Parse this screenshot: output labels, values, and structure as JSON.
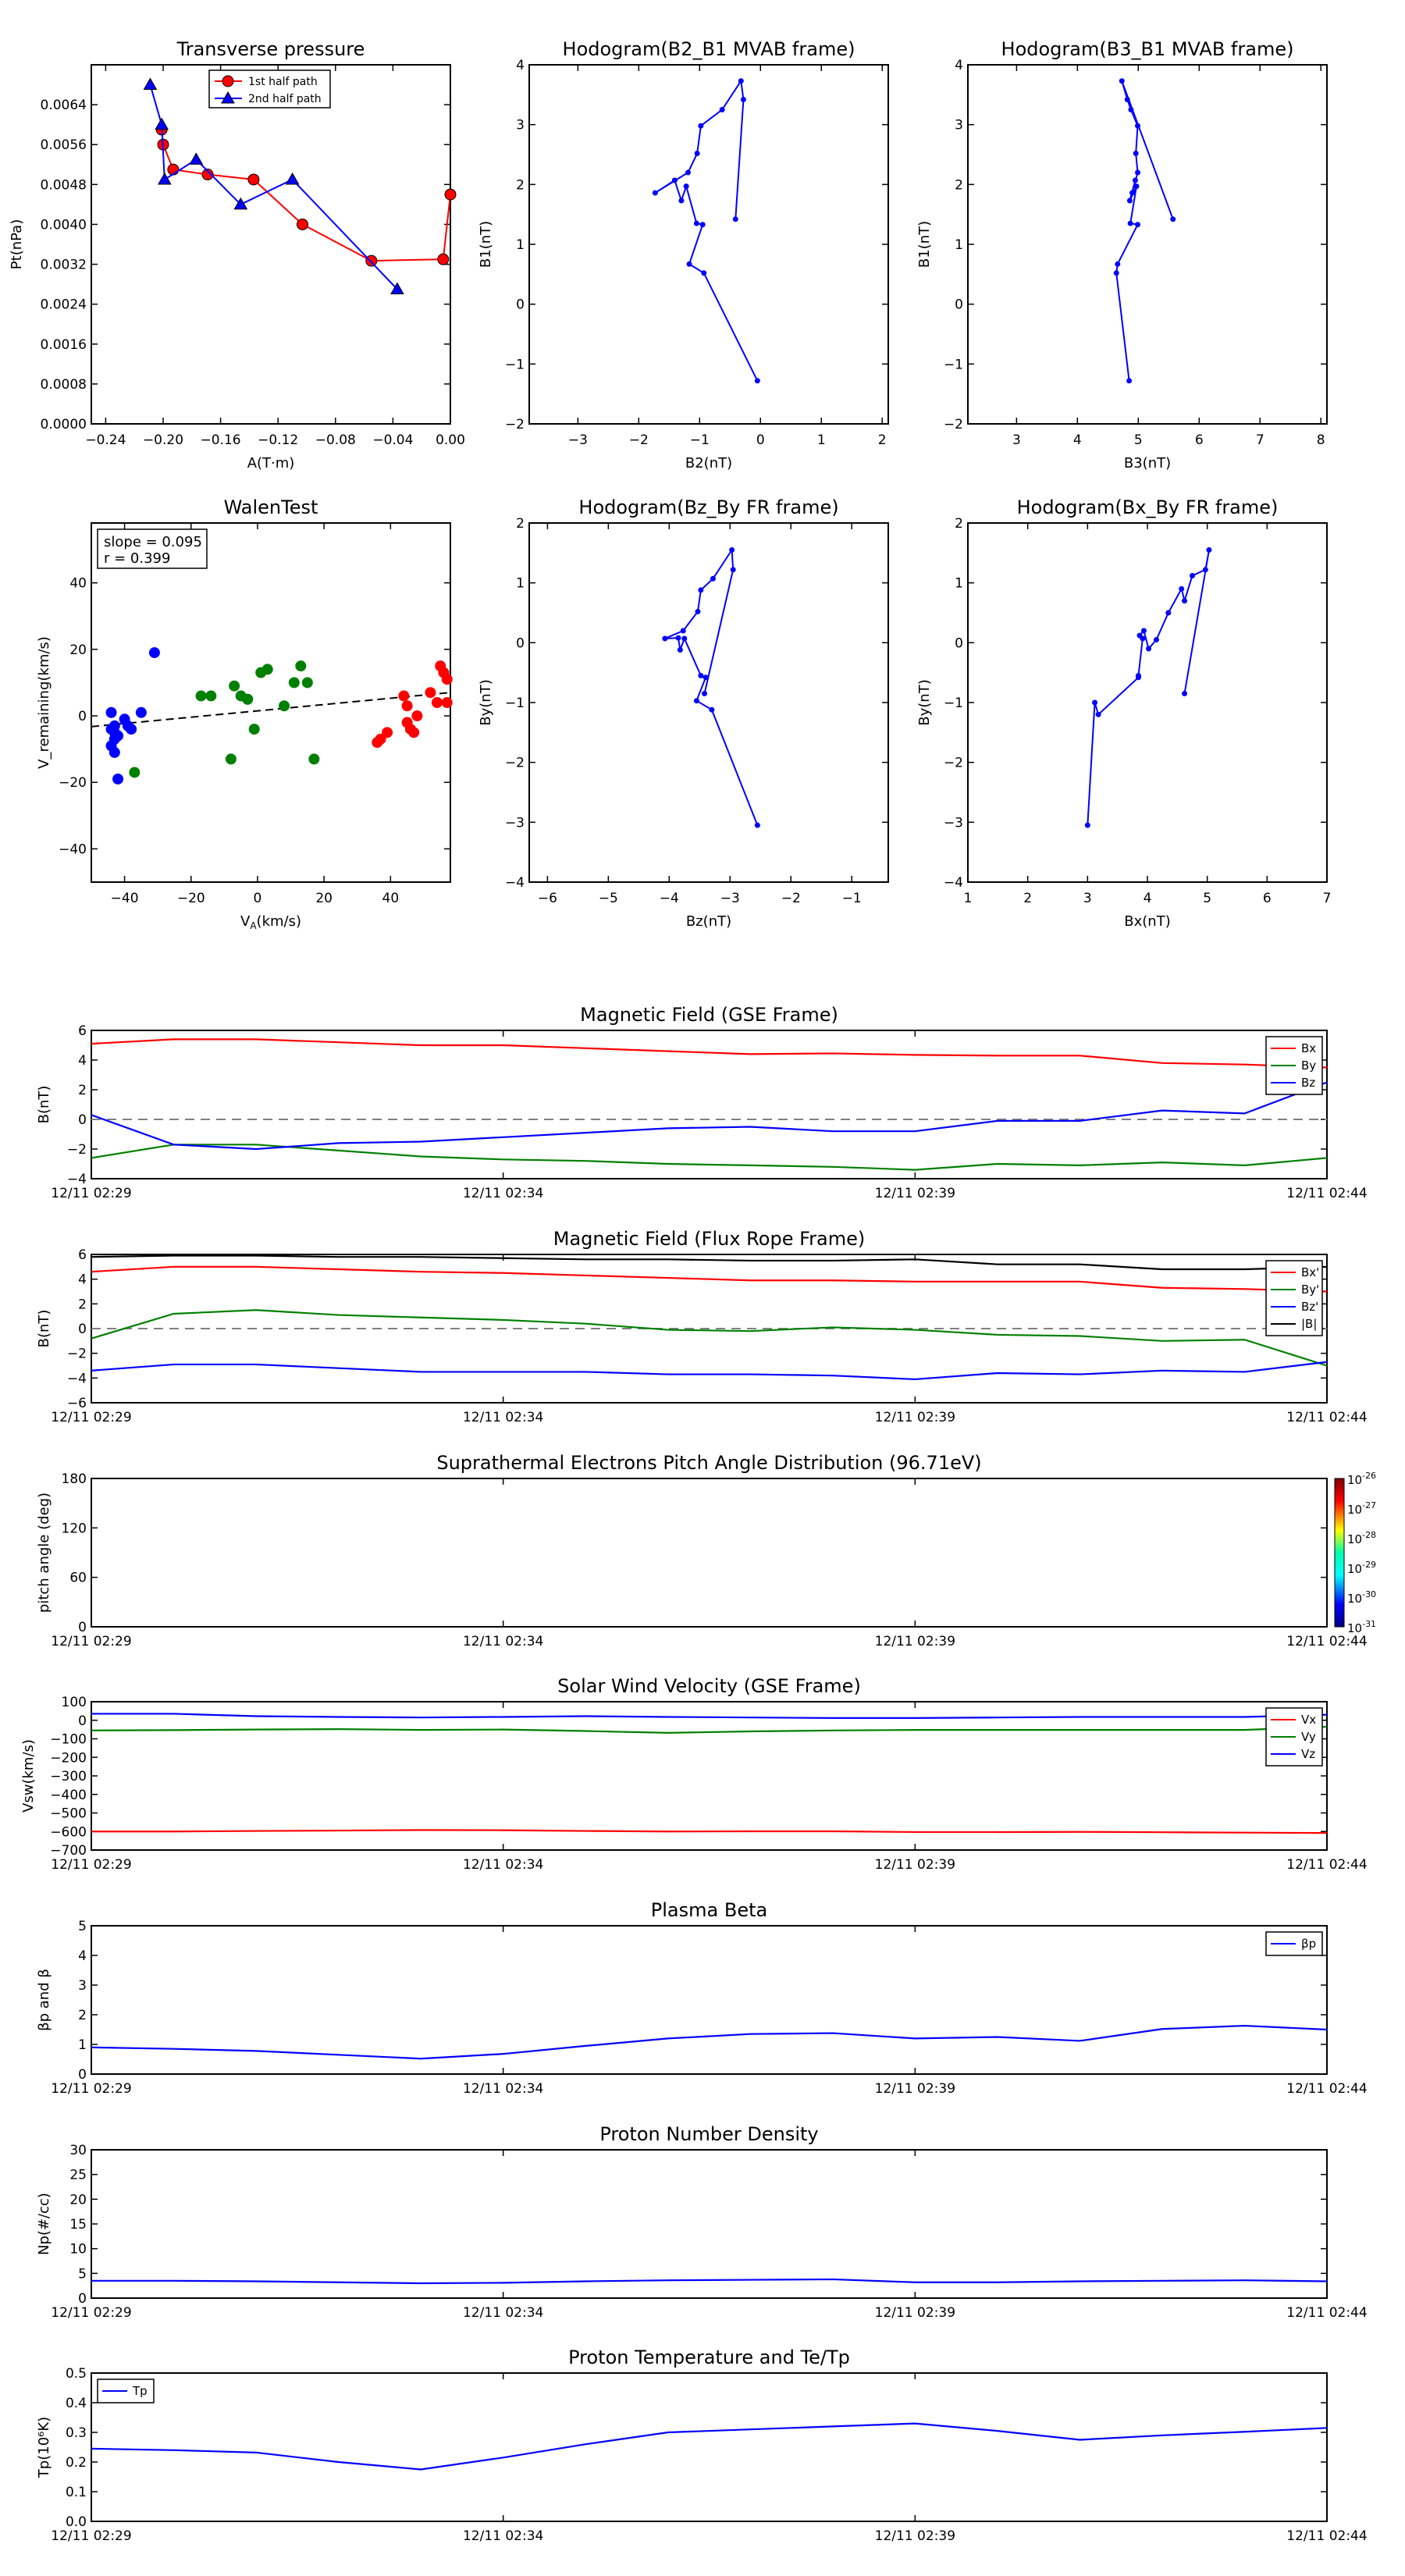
{
  "colors": {
    "red": "#ff0000",
    "green": "#008000",
    "blue": "#0000ff",
    "black": "#000000",
    "gray": "#808080"
  },
  "chart_data": [
    {
      "id": "tp",
      "type": "line",
      "title": "Transverse pressure",
      "xlabel": "A(T·m)",
      "ylabel": "Pt(nPa)",
      "xlim": [
        -0.25,
        0.0
      ],
      "ylim": [
        0.0,
        0.0072
      ],
      "xticks": [
        -0.24,
        -0.2,
        -0.16,
        -0.12,
        -0.08,
        -0.04,
        0.0
      ],
      "xtick_labels": [
        "−0.24",
        "−0.20",
        "−0.16",
        "−0.12",
        "−0.08",
        "−0.04",
        "0.00"
      ],
      "yticks": [
        0.0,
        0.0008,
        0.0016,
        0.0024,
        0.0032,
        0.004,
        0.0048,
        0.0056,
        0.0064
      ],
      "ytick_labels": [
        "0.0000",
        "0.0008",
        "0.0016",
        "0.0024",
        "0.0032",
        "0.0040",
        "0.0048",
        "0.0056",
        "0.0064"
      ],
      "legend": "top-center",
      "series": [
        {
          "name": "1st half path",
          "color": "red",
          "marker": "circle",
          "x": [
            0.0,
            -0.005,
            -0.055,
            -0.103,
            -0.137,
            -0.169,
            -0.193,
            -0.2,
            -0.201
          ],
          "y": [
            0.0046,
            0.0033,
            0.00327,
            0.004,
            0.0049,
            0.005,
            0.0051,
            0.0056,
            0.0059
          ]
        },
        {
          "name": "2nd half path",
          "color": "blue",
          "marker": "triangle",
          "x": [
            -0.037,
            -0.11,
            -0.146,
            -0.177,
            -0.199,
            -0.201,
            -0.209
          ],
          "y": [
            0.0027,
            0.0049,
            0.0044,
            0.0053,
            0.0049,
            0.006,
            0.0068
          ]
        }
      ]
    },
    {
      "id": "hodo1",
      "type": "line",
      "title": "Hodogram(B2_B1 MVAB frame)",
      "xlabel": "B2(nT)",
      "ylabel": "B1(nT)",
      "xlim": [
        -3.8,
        2.1
      ],
      "ylim": [
        -2,
        4
      ],
      "xticks": [
        -3,
        -2,
        -1,
        0,
        1,
        2
      ],
      "xtick_labels": [
        "−3",
        "−2",
        "−1",
        "0",
        "1",
        "2"
      ],
      "yticks": [
        -2,
        -1,
        0,
        1,
        2,
        3,
        4
      ],
      "ytick_labels": [
        "−2",
        "−1",
        "0",
        "1",
        "2",
        "3",
        "4"
      ],
      "series": [
        {
          "name": "hodogram",
          "color": "blue",
          "marker": "dot",
          "x": [
            -0.05,
            -0.93,
            -1.17,
            -0.95,
            -1.05,
            -1.22,
            -1.3,
            -1.41,
            -1.73,
            -1.19,
            -1.04,
            -0.98,
            -0.63,
            -0.32,
            -0.28,
            -0.41
          ],
          "y": [
            -1.28,
            0.52,
            0.67,
            1.33,
            1.35,
            1.97,
            1.73,
            2.07,
            1.86,
            2.2,
            2.52,
            2.98,
            3.25,
            3.73,
            3.42,
            1.42
          ]
        }
      ]
    },
    {
      "id": "hodo2",
      "type": "line",
      "title": "Hodogram(B3_B1 MVAB frame)",
      "xlabel": "B3(nT)",
      "ylabel": "B1(nT)",
      "xlim": [
        2.2,
        8.1
      ],
      "ylim": [
        -2,
        4
      ],
      "xticks": [
        3,
        4,
        5,
        6,
        7,
        8
      ],
      "xtick_labels": [
        "3",
        "4",
        "5",
        "6",
        "7",
        "8"
      ],
      "yticks": [
        -2,
        -1,
        0,
        1,
        2,
        3,
        4
      ],
      "ytick_labels": [
        "−2",
        "−1",
        "0",
        "1",
        "2",
        "3",
        "4"
      ],
      "series": [
        {
          "name": "hodogram",
          "color": "blue",
          "marker": "dot",
          "x": [
            4.85,
            4.64,
            4.66,
            4.99,
            4.87,
            4.97,
            4.86,
            4.95,
            4.9,
            4.99,
            4.96,
            4.99,
            4.88,
            4.82,
            4.73,
            5.57
          ],
          "y": [
            -1.28,
            0.52,
            0.67,
            1.33,
            1.35,
            1.97,
            1.73,
            2.07,
            1.86,
            2.2,
            2.52,
            2.98,
            3.25,
            3.42,
            3.73,
            1.42
          ]
        }
      ]
    },
    {
      "id": "walen",
      "type": "scatter",
      "title": "WalenTest",
      "xlabel": "V_A(km/s)",
      "ylabel": "V_remaining(km/s)",
      "xlim": [
        -50,
        58
      ],
      "ylim": [
        -50,
        58
      ],
      "xticks": [
        -40,
        -20,
        0,
        20,
        40
      ],
      "xtick_labels": [
        "−40",
        "−20",
        "0",
        "20",
        "40"
      ],
      "yticks": [
        -40,
        -20,
        0,
        20,
        40
      ],
      "ytick_labels": [
        "−40",
        "−20",
        "0",
        "20",
        "40"
      ],
      "annotation": [
        "slope = 0.095",
        "r = 0.399"
      ],
      "fit": {
        "slope": 0.095,
        "intercept": 1.5
      },
      "series": [
        {
          "name": "blue",
          "color": "blue",
          "x": [
            -43,
            -43,
            -44,
            -44,
            -43,
            -42,
            -40,
            -39,
            -38,
            -35,
            -31,
            -44,
            -42,
            -43
          ],
          "y": [
            -5,
            -7,
            -9,
            -4,
            -11,
            -19,
            -1,
            -3,
            -4,
            1,
            19,
            1,
            -6,
            -3
          ]
        },
        {
          "name": "green",
          "color": "green",
          "x": [
            -37,
            -17,
            -14,
            -8,
            -7,
            -5,
            -3,
            -1,
            1,
            3,
            8,
            11,
            13,
            15,
            17,
            -3
          ],
          "y": [
            -17,
            6,
            6,
            -13,
            9,
            6,
            5,
            -4,
            13,
            14,
            3,
            10,
            15,
            10,
            -13,
            5
          ]
        },
        {
          "name": "red",
          "color": "red",
          "x": [
            36,
            37,
            39,
            44,
            45,
            45,
            46,
            47,
            48,
            52,
            54,
            55,
            56,
            57,
            57
          ],
          "y": [
            -8,
            -7,
            -5,
            6,
            3,
            -2,
            -4,
            -5,
            0,
            7,
            4,
            15,
            13,
            11,
            4
          ]
        }
      ]
    },
    {
      "id": "hodo3",
      "type": "line",
      "title": "Hodogram(Bz_By FR frame)",
      "xlabel": "Bz(nT)",
      "ylabel": "By(nT)",
      "xlim": [
        -6.3,
        -0.4
      ],
      "ylim": [
        -4,
        2
      ],
      "xticks": [
        -6,
        -5,
        -4,
        -3,
        -2,
        -1
      ],
      "xtick_labels": [
        "−6",
        "−5",
        "−4",
        "−3",
        "−2",
        "−1"
      ],
      "yticks": [
        -4,
        -3,
        -2,
        -1,
        0,
        1,
        2
      ],
      "ytick_labels": [
        "−4",
        "−3",
        "−2",
        "−1",
        "0",
        "1",
        "2"
      ],
      "series": [
        {
          "name": "hodogram",
          "color": "blue",
          "marker": "dot",
          "x": [
            -2.55,
            -3.3,
            -3.55,
            -3.4,
            -3.48,
            -3.75,
            -3.82,
            -3.85,
            -4.07,
            -3.77,
            -3.53,
            -3.48,
            -3.28,
            -2.97,
            -2.95,
            -3.42
          ],
          "y": [
            -3.05,
            -1.12,
            -0.97,
            -0.58,
            -0.55,
            0.07,
            -0.12,
            0.08,
            0.07,
            0.2,
            0.52,
            0.88,
            1.07,
            1.55,
            1.22,
            -0.85
          ]
        }
      ]
    },
    {
      "id": "hodo4",
      "type": "line",
      "title": "Hodogram(Bx_By FR frame)",
      "xlabel": "Bx(nT)",
      "ylabel": "By(nT)",
      "xlim": [
        1,
        7
      ],
      "ylim": [
        -4,
        2
      ],
      "xticks": [
        1,
        2,
        3,
        4,
        5,
        6,
        7
      ],
      "xtick_labels": [
        "1",
        "2",
        "3",
        "4",
        "5",
        "6",
        "7"
      ],
      "yticks": [
        -4,
        -3,
        -2,
        -1,
        0,
        1,
        2
      ],
      "ytick_labels": [
        "−4",
        "−3",
        "−2",
        "−1",
        "0",
        "1",
        "2"
      ],
      "series": [
        {
          "name": "hodogram",
          "color": "blue",
          "marker": "dot",
          "x": [
            3.0,
            3.12,
            3.18,
            3.85,
            3.85,
            3.92,
            3.87,
            3.94,
            4.02,
            4.15,
            4.35,
            4.57,
            4.62,
            4.75,
            4.97,
            5.03,
            4.62
          ],
          "y": [
            -3.05,
            -1.0,
            -1.2,
            -0.58,
            -0.55,
            0.07,
            0.12,
            0.2,
            -0.1,
            0.05,
            0.5,
            0.9,
            0.7,
            1.12,
            1.22,
            1.55,
            -0.85
          ]
        }
      ]
    },
    {
      "id": "bgse",
      "type": "line",
      "title": "Magnetic Field (GSE Frame)",
      "ylabel": "B(nT)",
      "ylim": [
        -4,
        6
      ],
      "yticks": [
        -4,
        -2,
        0,
        2,
        4,
        6
      ],
      "ytick_labels": [
        "−4",
        "−2",
        "0",
        "2",
        "4",
        "6"
      ],
      "zero_line": true,
      "legend": "top-right",
      "series": [
        {
          "name": "Bx",
          "color": "red",
          "values": [
            5.1,
            5.4,
            5.4,
            5.2,
            5.0,
            5.0,
            4.8,
            4.6,
            4.4,
            4.45,
            4.35,
            4.3,
            4.3,
            3.8,
            3.7,
            3.5
          ]
        },
        {
          "name": "By",
          "color": "green",
          "values": [
            -2.6,
            -1.7,
            -1.7,
            -2.1,
            -2.5,
            -2.7,
            -2.8,
            -3.0,
            -3.1,
            -3.2,
            -3.4,
            -3.0,
            -3.1,
            -2.9,
            -3.1,
            -2.6
          ]
        },
        {
          "name": "Bz",
          "color": "blue",
          "values": [
            0.3,
            -1.7,
            -2.0,
            -1.6,
            -1.5,
            -1.2,
            -0.9,
            -0.6,
            -0.5,
            -0.8,
            -0.8,
            -0.1,
            -0.1,
            0.6,
            0.4,
            2.5
          ]
        }
      ]
    },
    {
      "id": "bfr",
      "type": "line",
      "title": "Magnetic Field (Flux Rope Frame)",
      "ylabel": "B(nT)",
      "ylim": [
        -6,
        6
      ],
      "yticks": [
        -6,
        -4,
        -2,
        0,
        2,
        4,
        6
      ],
      "ytick_labels": [
        "−6",
        "−4",
        "−2",
        "0",
        "2",
        "4",
        "6"
      ],
      "zero_line": true,
      "legend": "top-right",
      "series": [
        {
          "name": "Bx'",
          "color": "red",
          "values": [
            4.6,
            5.0,
            5.0,
            4.8,
            4.6,
            4.5,
            4.3,
            4.1,
            3.9,
            3.9,
            3.8,
            3.8,
            3.8,
            3.3,
            3.2,
            3.0
          ]
        },
        {
          "name": "By'",
          "color": "green",
          "values": [
            -0.8,
            1.2,
            1.5,
            1.1,
            0.9,
            0.7,
            0.4,
            -0.1,
            -0.2,
            0.1,
            -0.1,
            -0.5,
            -0.6,
            -1.0,
            -0.9,
            -3.0
          ]
        },
        {
          "name": "Bz'",
          "color": "blue",
          "values": [
            -3.4,
            -2.9,
            -2.9,
            -3.2,
            -3.5,
            -3.5,
            -3.5,
            -3.7,
            -3.7,
            -3.8,
            -4.1,
            -3.6,
            -3.7,
            -3.4,
            -3.5,
            -2.7
          ]
        },
        {
          "name": "|B|",
          "color": "black",
          "values": [
            5.8,
            5.9,
            5.9,
            5.8,
            5.8,
            5.7,
            5.6,
            5.6,
            5.5,
            5.5,
            5.6,
            5.2,
            5.2,
            4.8,
            4.8,
            5.0
          ]
        }
      ]
    },
    {
      "id": "pad",
      "type": "heatmap",
      "title": "Suprathermal Electrons Pitch Angle Distribution (96.71eV)",
      "ylabel": "pitch angle (deg)",
      "ylim": [
        0,
        180
      ],
      "yticks": [
        0,
        60,
        120,
        180
      ],
      "ytick_labels": [
        "0",
        "60",
        "120",
        "180"
      ],
      "colorbar": {
        "labels": [
          "10",
          "10",
          "10",
          "10",
          "10",
          "10"
        ],
        "exponents": [
          "-26",
          "-27",
          "-28",
          "-29",
          "-30",
          "-31"
        ]
      },
      "series": []
    },
    {
      "id": "vsw",
      "type": "line",
      "title": "Solar Wind Velocity (GSE Frame)",
      "ylabel": "Vsw(km/s)",
      "ylim": [
        -700,
        100
      ],
      "yticks": [
        -700,
        -600,
        -500,
        -400,
        -300,
        -200,
        -100,
        0,
        100
      ],
      "ytick_labels": [
        "−700",
        "−600",
        "−500",
        "−400",
        "−300",
        "−200",
        "−100",
        "0",
        "100"
      ],
      "legend": "top-right",
      "series": [
        {
          "name": "Vx",
          "color": "red",
          "values": [
            -600,
            -600,
            -597,
            -595,
            -592,
            -593,
            -597,
            -600,
            -599,
            -599,
            -603,
            -603,
            -602,
            -604,
            -606,
            -608
          ]
        },
        {
          "name": "Vy",
          "color": "green",
          "values": [
            -55,
            -53,
            -50,
            -48,
            -52,
            -50,
            -58,
            -68,
            -60,
            -55,
            -52,
            -52,
            -52,
            -52,
            -52,
            -35
          ]
        },
        {
          "name": "Vz",
          "color": "blue",
          "values": [
            35,
            35,
            22,
            18,
            15,
            18,
            22,
            18,
            15,
            12,
            12,
            15,
            18,
            18,
            18,
            30
          ]
        }
      ]
    },
    {
      "id": "beta",
      "type": "line",
      "title": "Plasma Beta",
      "ylabel": "βp and β",
      "ylim": [
        0,
        5
      ],
      "yticks": [
        0,
        1,
        2,
        3,
        4,
        5
      ],
      "ytick_labels": [
        "0",
        "1",
        "2",
        "3",
        "4",
        "5"
      ],
      "legend": "top-right",
      "series": [
        {
          "name": "βp",
          "color": "blue",
          "values": [
            0.9,
            0.85,
            0.78,
            0.65,
            0.52,
            0.68,
            0.95,
            1.2,
            1.35,
            1.38,
            1.2,
            1.25,
            1.12,
            1.52,
            1.63,
            1.5
          ]
        }
      ]
    },
    {
      "id": "np",
      "type": "line",
      "title": "Proton Number Density",
      "ylabel": "Np(#/cc)",
      "ylim": [
        0,
        30
      ],
      "yticks": [
        0,
        5,
        10,
        15,
        20,
        25,
        30
      ],
      "ytick_labels": [
        "0",
        "5",
        "10",
        "15",
        "20",
        "25",
        "30"
      ],
      "series": [
        {
          "name": "Np",
          "color": "blue",
          "values": [
            3.5,
            3.5,
            3.4,
            3.2,
            3.0,
            3.1,
            3.4,
            3.6,
            3.7,
            3.8,
            3.2,
            3.2,
            3.4,
            3.5,
            3.6,
            3.4
          ]
        }
      ]
    },
    {
      "id": "temp",
      "type": "line",
      "title": "Proton Temperature and Te/Tp",
      "ylabel": "Tp(10⁶K)",
      "ylim": [
        0,
        0.5
      ],
      "yticks": [
        0,
        0.1,
        0.2,
        0.3,
        0.4,
        0.5
      ],
      "ytick_labels": [
        "0.0",
        "0.1",
        "0.2",
        "0.3",
        "0.4",
        "0.5"
      ],
      "legend": "top-left",
      "series": [
        {
          "name": "Tp",
          "color": "blue",
          "values": [
            0.245,
            0.24,
            0.232,
            0.2,
            0.175,
            0.215,
            0.26,
            0.3,
            0.31,
            0.32,
            0.33,
            0.305,
            0.275,
            0.29,
            0.302,
            0.315
          ]
        }
      ]
    }
  ],
  "time_axis": {
    "ticks": [
      "12/11 02:29",
      "12/11 02:34",
      "12/11 02:39",
      "12/11 02:44"
    ]
  }
}
